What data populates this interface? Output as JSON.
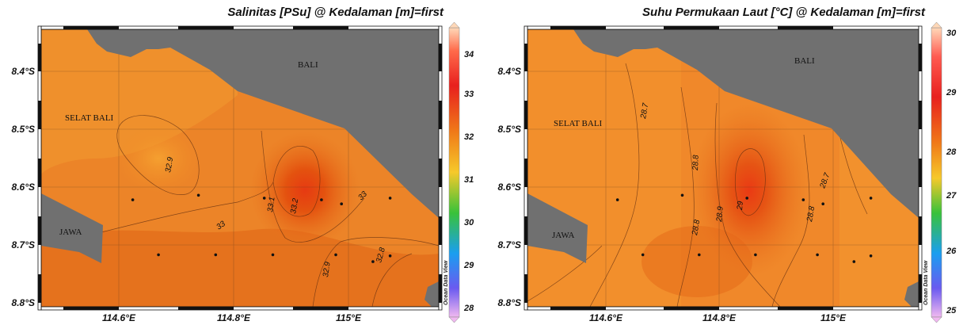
{
  "maps": [
    {
      "title": "Salinitas [PSu] @ Kedalaman [m]=first",
      "y_ticks": [
        "8.4°S",
        "8.5°S",
        "8.6°S",
        "8.7°S",
        "8.8°S"
      ],
      "x_ticks": [
        "114.6°E",
        "114.8°E",
        "115°E"
      ],
      "places": [
        "BALI",
        "SELAT BALI",
        "JAWA"
      ],
      "colorbar_ticks": [
        "34",
        "33",
        "32",
        "31",
        "30",
        "29",
        "28"
      ],
      "contour_labels": [
        "32.9",
        "33",
        "33.1",
        "33.2",
        "33",
        "32.9",
        "32.8"
      ],
      "watermark": "Ocean Data View",
      "hot_spot": {
        "lon": 114.93,
        "lat": -8.61,
        "value_label": "33.2"
      }
    },
    {
      "title": "Suhu Permukaan Laut [°C] @ Kedalaman [m]=first",
      "y_ticks": [
        "8.4°S",
        "8.5°S",
        "8.6°S",
        "8.7°S",
        "8.8°S"
      ],
      "x_ticks": [
        "114.6°E",
        "114.8°E",
        "115°E"
      ],
      "places": [
        "BALI",
        "SELAT BALI",
        "JAWA"
      ],
      "colorbar_ticks": [
        "30",
        "29",
        "28",
        "27",
        "26",
        "25"
      ],
      "contour_labels": [
        "28.7",
        "28.8",
        "28.8",
        "28.9",
        "29",
        "28.8",
        "28.7"
      ],
      "watermark": "Ocean Data View",
      "hot_spot": {
        "lon": 114.85,
        "lat": -8.61,
        "value_label": "29"
      }
    }
  ],
  "stations": [
    {
      "lon": 114.62,
      "lat": -8.625
    },
    {
      "lon": 114.735,
      "lat": -8.617
    },
    {
      "lon": 114.85,
      "lat": -8.622
    },
    {
      "lon": 114.95,
      "lat": -8.625
    },
    {
      "lon": 114.985,
      "lat": -8.632
    },
    {
      "lon": 115.07,
      "lat": -8.622
    },
    {
      "lon": 114.665,
      "lat": -8.72
    },
    {
      "lon": 114.765,
      "lat": -8.72
    },
    {
      "lon": 114.865,
      "lat": -8.72
    },
    {
      "lon": 114.975,
      "lat": -8.72
    },
    {
      "lon": 115.04,
      "lat": -8.732
    },
    {
      "lon": 115.07,
      "lat": -8.722
    }
  ],
  "colors": {
    "land": "#707070",
    "sea_base": "#e8761f",
    "sea_light": "#f39a2f",
    "hot": "#e43a12",
    "frame": "#111111"
  }
}
